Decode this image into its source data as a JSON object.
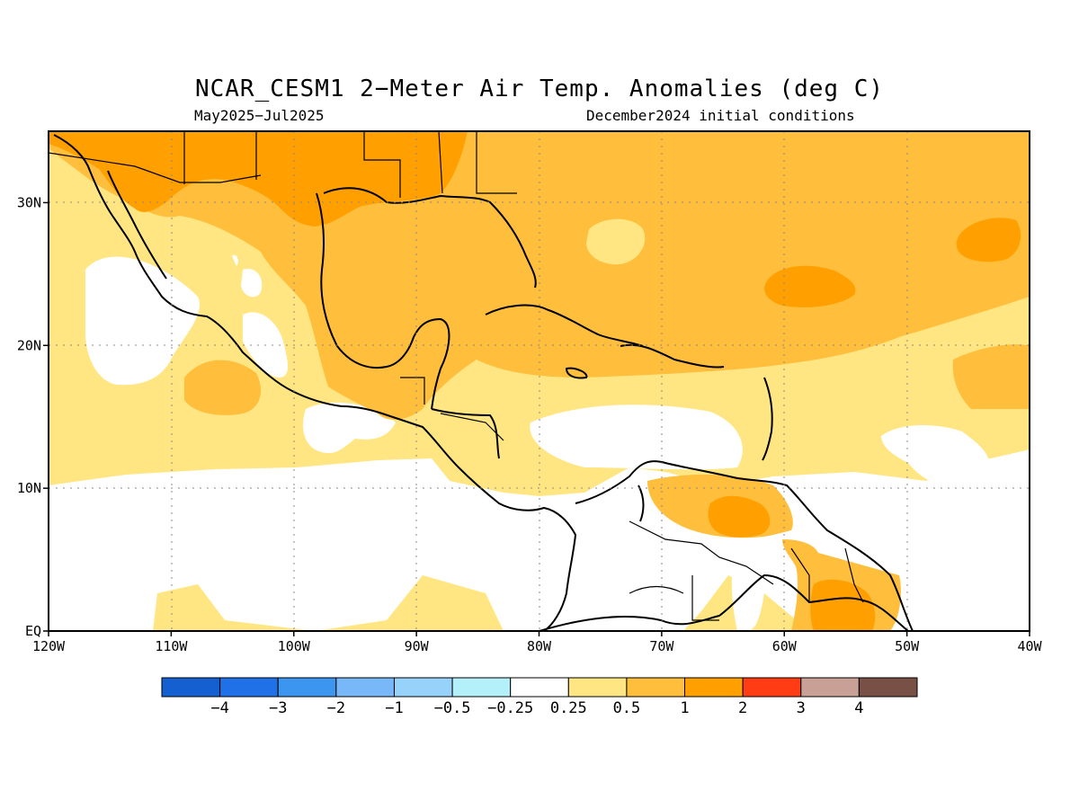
{
  "title": "NCAR_CESM1 2−Meter Air Temp. Anomalies (deg C)",
  "subtitle_left": "May2025−Jul2025",
  "subtitle_right": "December2024 initial conditions",
  "map": {
    "lon_range": [
      -120,
      -40
    ],
    "lat_range": [
      0,
      35
    ],
    "lat_labels": [
      {
        "value": 30,
        "text": "30N"
      },
      {
        "value": 20,
        "text": "20N"
      },
      {
        "value": 10,
        "text": "10N"
      },
      {
        "value": 0,
        "text": "EQ"
      }
    ],
    "lon_labels": [
      {
        "value": -120,
        "text": "120W"
      },
      {
        "value": -110,
        "text": "110W"
      },
      {
        "value": -100,
        "text": "100W"
      },
      {
        "value": -90,
        "text": "90W"
      },
      {
        "value": -80,
        "text": "80W"
      },
      {
        "value": -70,
        "text": "70W"
      },
      {
        "value": -60,
        "text": "60W"
      },
      {
        "value": -50,
        "text": "50W"
      },
      {
        "value": -40,
        "text": "40W"
      }
    ],
    "grid": "dotted"
  },
  "colorbar": {
    "colors": [
      "#1460d0",
      "#2070e8",
      "#3c96f0",
      "#78b8f8",
      "#96d2fa",
      "#b4f0fa",
      "#ffffff",
      "#ffe682",
      "#ffbe3c",
      "#ffa000",
      "#ff3c14",
      "#c8a096",
      "#785046"
    ],
    "labels": [
      "−4",
      "−3",
      "−2",
      "−1",
      "−0.5",
      "−0.25",
      "0.25",
      "0.5",
      "1",
      "2",
      "3",
      "4"
    ]
  },
  "fill_colors": {
    "band_025_05": "#ffe682",
    "band_05_1": "#ffbe3c",
    "band_1_2": "#ffa000",
    "near_zero": "#ffffff"
  }
}
